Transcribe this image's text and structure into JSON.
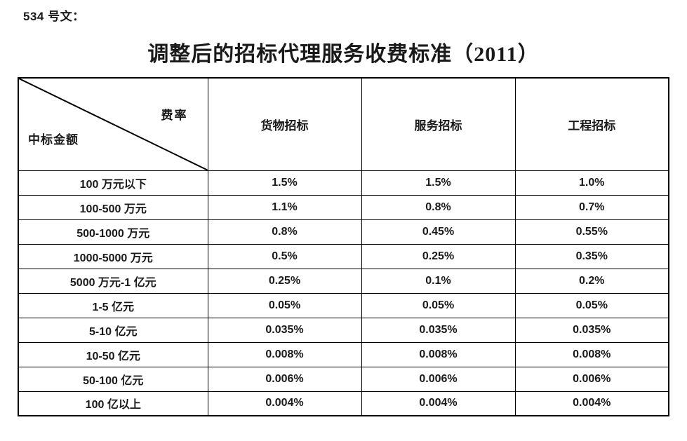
{
  "doc": {
    "ref_label": "534 号文：",
    "title": "调整后的招标代理服务收费标准（2011）"
  },
  "table": {
    "corner": {
      "top_right": "费率",
      "bottom_left": "中标金额"
    },
    "columns": [
      "货物招标",
      "服务招标",
      "工程招标"
    ],
    "rows": [
      {
        "amount": "100 万元以下",
        "goods": "1.5%",
        "services": "1.5%",
        "engineering": "1.0%"
      },
      {
        "amount": "100-500 万元",
        "goods": "1.1%",
        "services": "0.8%",
        "engineering": "0.7%"
      },
      {
        "amount": "500-1000 万元",
        "goods": "0.8%",
        "services": "0.45%",
        "engineering": "0.55%"
      },
      {
        "amount": "1000-5000 万元",
        "goods": "0.5%",
        "services": "0.25%",
        "engineering": "0.35%"
      },
      {
        "amount": "5000 万元-1 亿元",
        "goods": "0.25%",
        "services": "0.1%",
        "engineering": "0.2%"
      },
      {
        "amount": "1-5 亿元",
        "goods": "0.05%",
        "services": "0.05%",
        "engineering": "0.05%"
      },
      {
        "amount": "5-10 亿元",
        "goods": "0.035%",
        "services": "0.035%",
        "engineering": "0.035%"
      },
      {
        "amount": "10-50 亿元",
        "goods": "0.008%",
        "services": "0.008%",
        "engineering": "0.008%"
      },
      {
        "amount": "50-100 亿元",
        "goods": "0.006%",
        "services": "0.006%",
        "engineering": "0.006%"
      },
      {
        "amount": "100 亿以上",
        "goods": "0.004%",
        "services": "0.004%",
        "engineering": "0.004%"
      }
    ]
  },
  "colors": {
    "text": "#1a1a1a",
    "border": "#000000",
    "background": "#ffffff"
  }
}
